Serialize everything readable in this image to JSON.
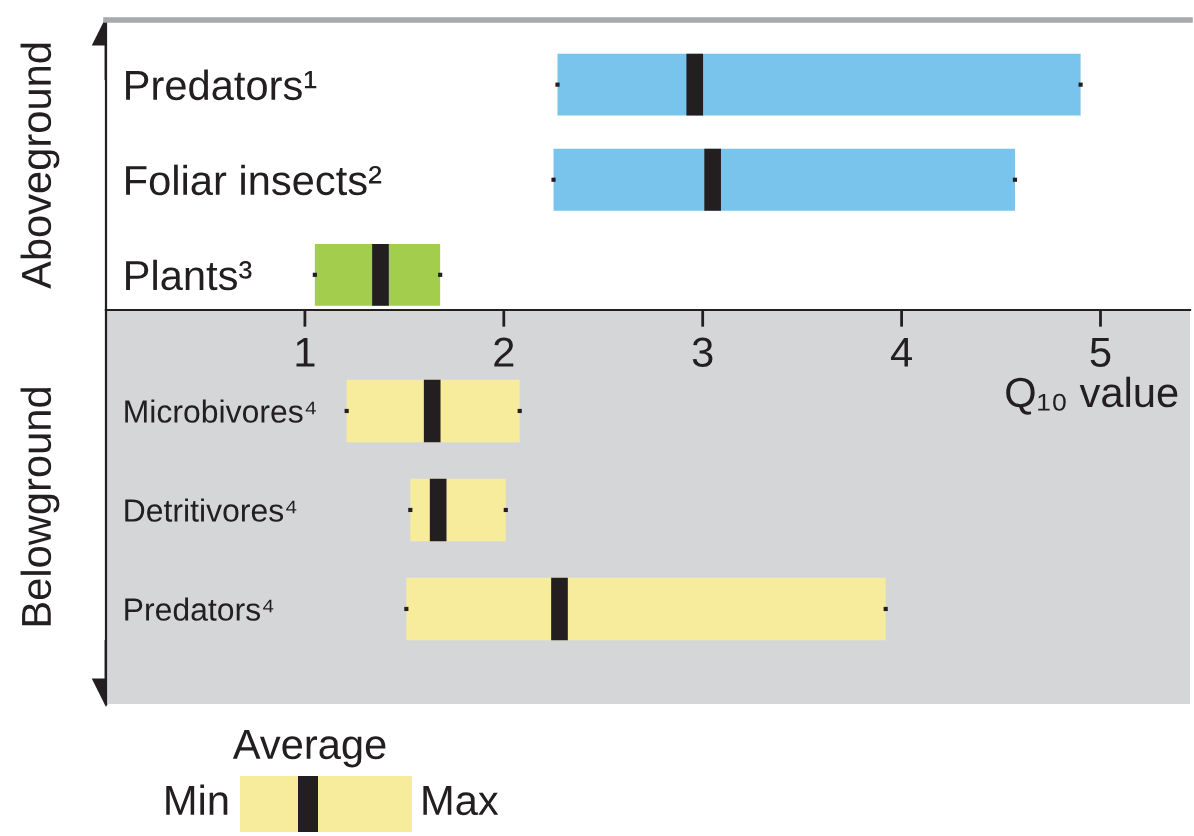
{
  "chart_data": [
    {
      "type": "box",
      "orientation": "horizontal",
      "ylabel": "Aboveground",
      "xlabel": "Q₁₀ value",
      "categories": [
        "Predators¹",
        "Foliar insects²",
        "Plants³"
      ],
      "xlim": [
        0,
        5.45
      ],
      "xticks": [
        1,
        2,
        3,
        4,
        5
      ],
      "grid": false,
      "legend": false,
      "colors": [
        "#79c4ec",
        "#79c4ec",
        "#a3cd4c"
      ],
      "boxes": [
        {
          "low": 2.27,
          "q1": 2.27,
          "median": 2.96,
          "q3": 4.9,
          "high": 4.9
        },
        {
          "low": 2.25,
          "q1": 2.25,
          "median": 3.05,
          "q3": 4.57,
          "high": 4.57
        },
        {
          "low": 1.05,
          "q1": 1.05,
          "median": 1.38,
          "q3": 1.68,
          "high": 1.68
        }
      ]
    },
    {
      "type": "box",
      "orientation": "horizontal",
      "ylabel": "Belowground",
      "categories": [
        "Microbivores⁴",
        "Detritivores⁴",
        "Predators⁴"
      ],
      "xlim": [
        0,
        5.45
      ],
      "tick_labels": "y",
      "grid": false,
      "legend": false,
      "colors": [
        "#f7eb9c",
        "#f7eb9c",
        "#f7eb9c"
      ],
      "boxes": [
        {
          "low": 1.21,
          "q1": 1.21,
          "median": 1.64,
          "q3": 2.08,
          "high": 2.08
        },
        {
          "low": 1.53,
          "q1": 1.53,
          "median": 1.67,
          "q3": 2.01,
          "high": 2.01
        },
        {
          "low": 1.51,
          "q1": 1.51,
          "median": 2.28,
          "q3": 3.92,
          "high": 3.92
        }
      ],
      "annotations": [
        "Average",
        "Min",
        "Max"
      ]
    }
  ]
}
